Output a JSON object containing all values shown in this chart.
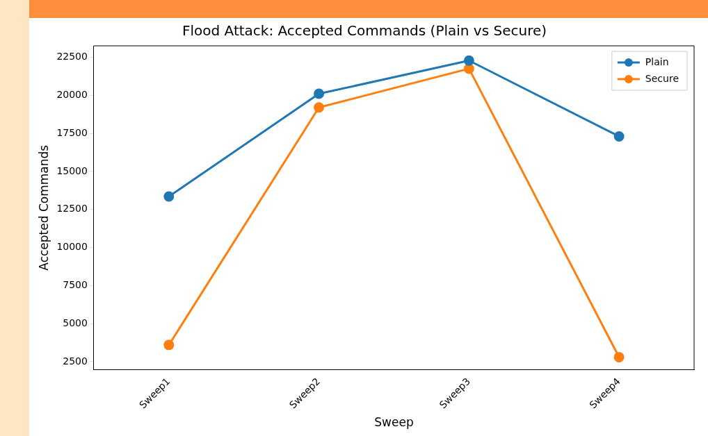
{
  "chart_data": {
    "type": "line",
    "title": "Flood Attack: Accepted Commands (Plain vs Secure)",
    "xlabel": "Sweep",
    "ylabel": "Accepted Commands",
    "categories": [
      "Sweep1",
      "Sweep2",
      "Sweep3",
      "Sweep4"
    ],
    "series": [
      {
        "name": "Plain",
        "color": "#1f77b4",
        "values": [
          13350,
          20100,
          22280,
          17300
        ]
      },
      {
        "name": "Secure",
        "color": "#ff7f0e",
        "values": [
          3600,
          19200,
          21750,
          2800
        ]
      }
    ],
    "ylim": [
      1970,
      23250
    ],
    "yticks": [
      2500,
      5000,
      7500,
      10000,
      12500,
      15000,
      17500,
      20000,
      22500
    ],
    "grid": false,
    "legend": "top right",
    "marker": "circle",
    "line_style": "solid"
  }
}
